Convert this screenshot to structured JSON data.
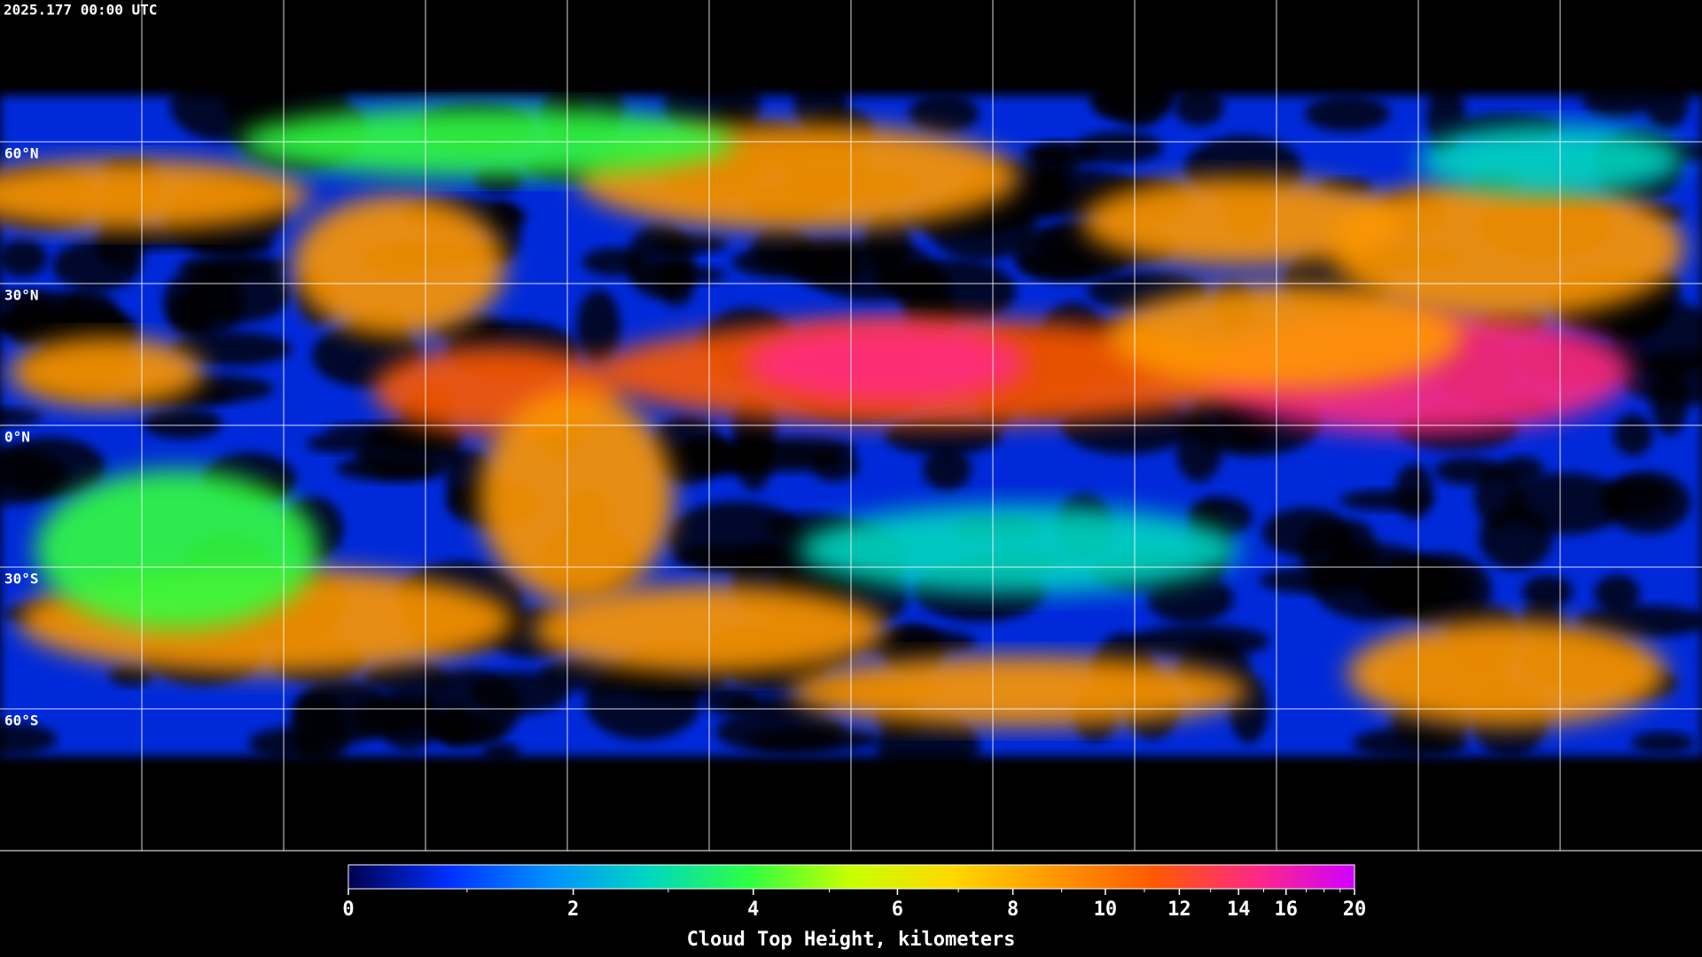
{
  "header": {
    "timestamp": "2025.177 00:00 UTC"
  },
  "map": {
    "latitude_labels": [
      "60°N",
      "30°N",
      "0°N",
      "30°S",
      "60°S"
    ]
  },
  "colorbar": {
    "label": "Cloud Top Height, kilometers",
    "range": [
      0,
      20
    ],
    "ticks": [
      0,
      2,
      4,
      6,
      8,
      10,
      12,
      14,
      16,
      20
    ],
    "minor_ticks": [
      1,
      3,
      5,
      7,
      9,
      11,
      13,
      15,
      17,
      18,
      19
    ],
    "colors": [
      "#000050",
      "#0030ff",
      "#0090ff",
      "#00d8c0",
      "#30ff40",
      "#c8ff00",
      "#ffd800",
      "#ff9800",
      "#ff5a00",
      "#ff2a80",
      "#d000ff"
    ]
  }
}
